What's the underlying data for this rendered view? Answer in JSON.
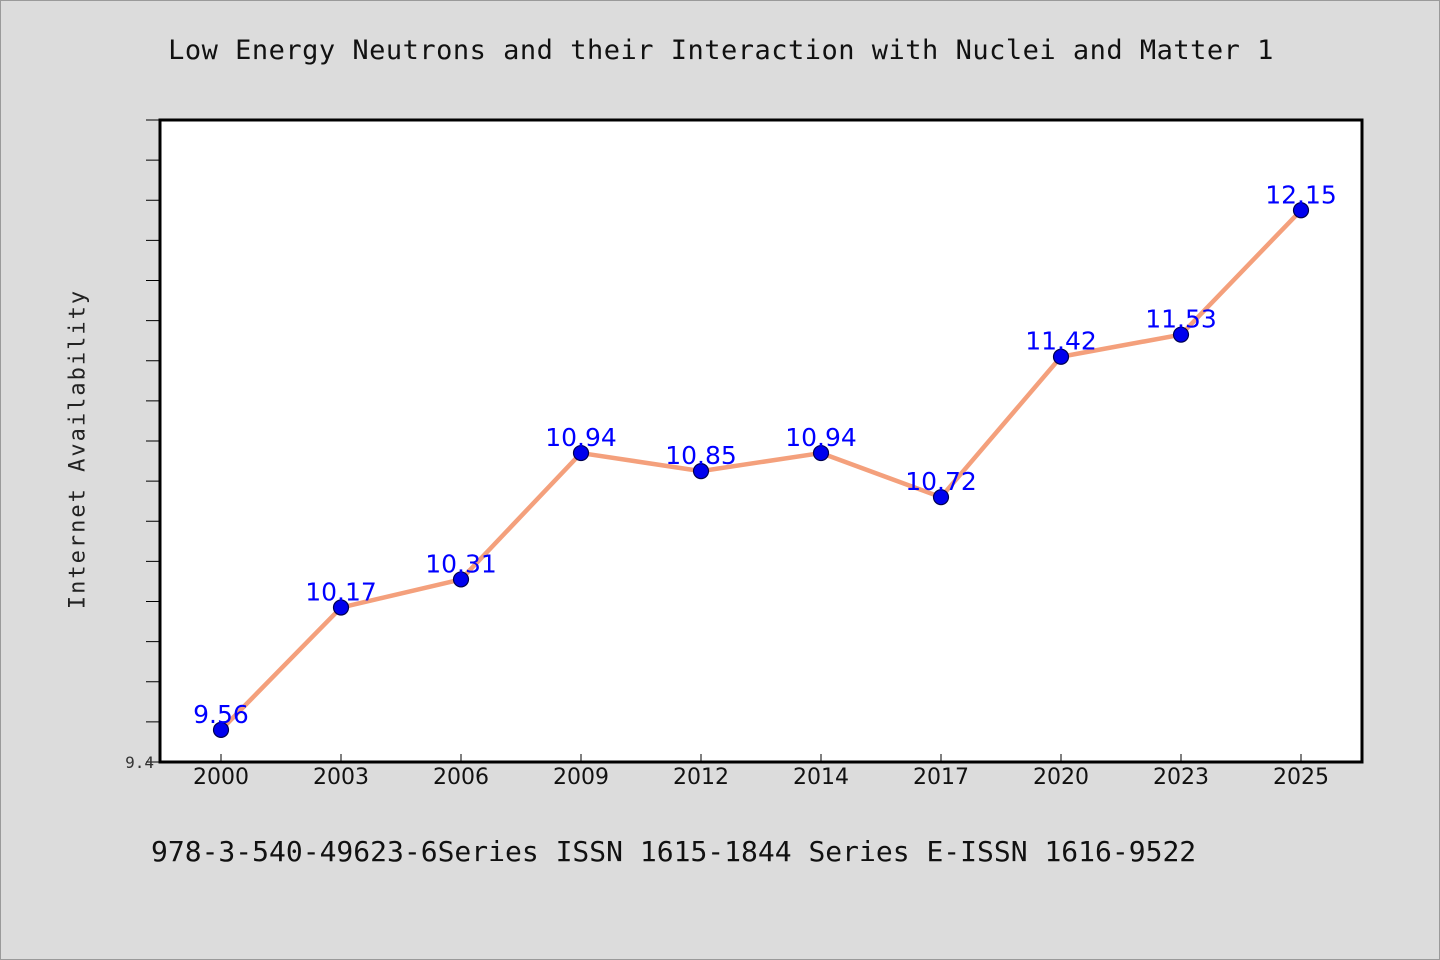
{
  "chart_data": {
    "type": "line",
    "title": "Low Energy Neutrons and their Interaction with Nuclei and Matter 1",
    "xlabel": "",
    "ylabel": "Internet Availability",
    "categories": [
      "2000",
      "2003",
      "2006",
      "2009",
      "2012",
      "2014",
      "2017",
      "2020",
      "2023",
      "2025"
    ],
    "series": [
      {
        "values": [
          9.56,
          10.17,
          10.31,
          10.94,
          10.85,
          10.94,
          10.72,
          11.42,
          11.53,
          12.15
        ],
        "data_labels": [
          "9.56",
          "10.17",
          "10.31",
          "10.94",
          "10.85",
          "10.94",
          "10.72",
          "11.42",
          "11.53",
          "12.15"
        ]
      }
    ],
    "ylim": [
      9.4,
      12.6
    ],
    "yticks_labeled": [
      "9.4"
    ],
    "grid": false,
    "legend": "none",
    "colors": {
      "line": "#f4a07c",
      "marker": "#0000ee",
      "data_label": "#0000ff",
      "plot_background": "#ffffff",
      "figure_background": "#dcdcdc"
    }
  },
  "footer": {
    "text": "978-3-540-49623-6Series ISSN 1615-1844 Series E-ISSN 1616-9522"
  }
}
